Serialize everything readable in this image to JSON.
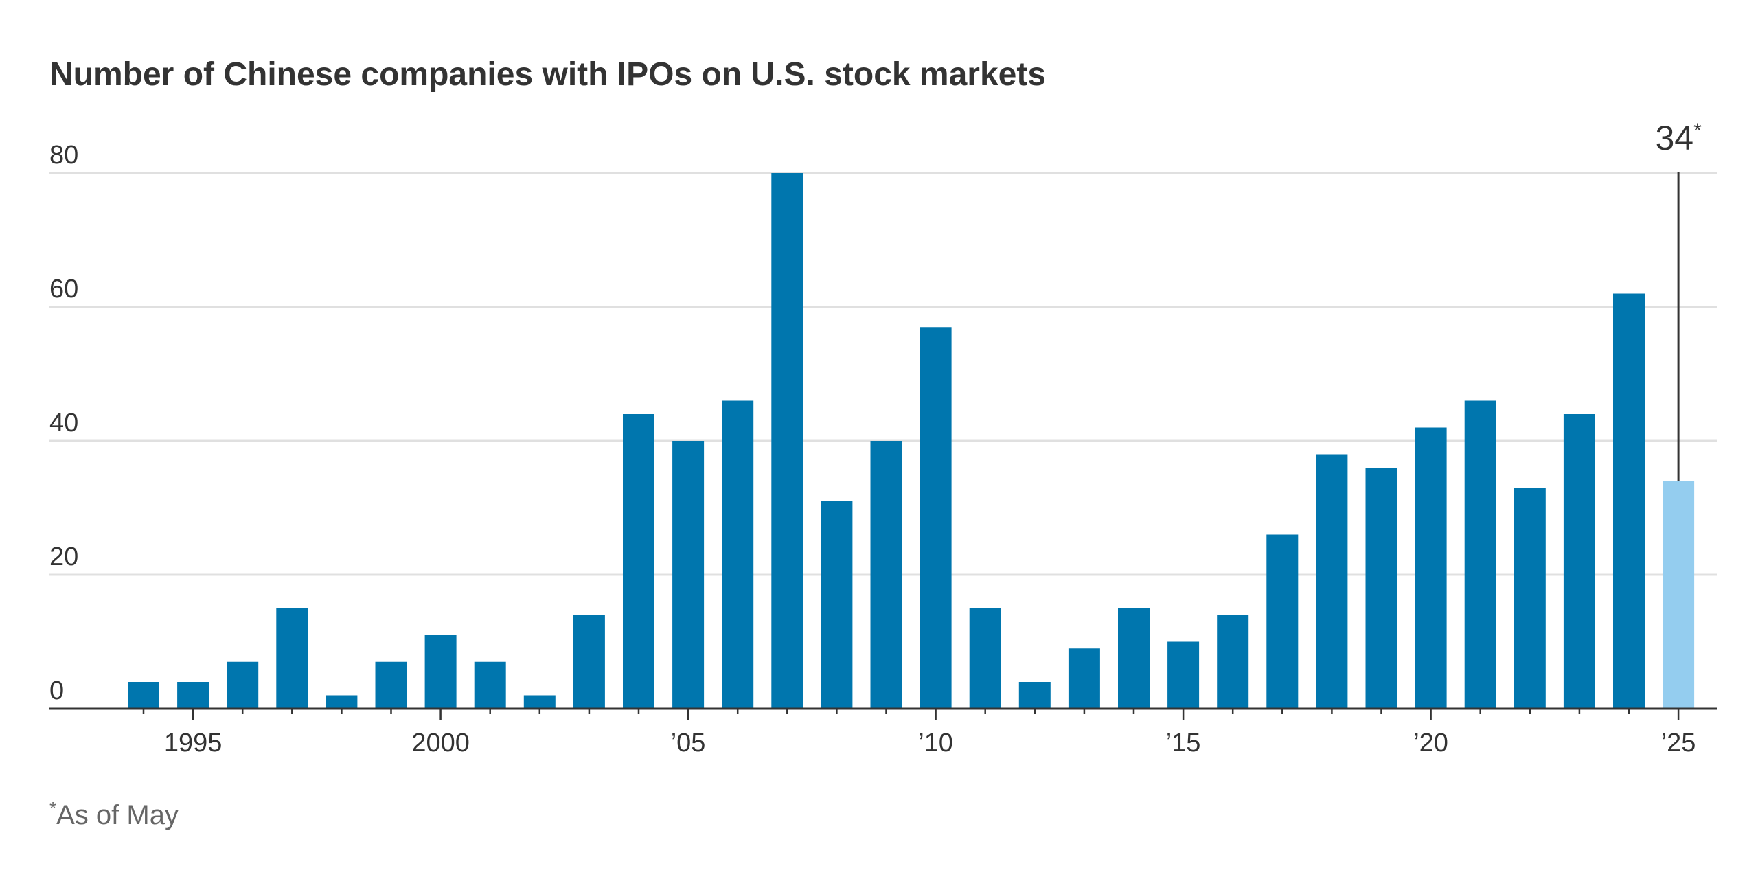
{
  "chart_data": {
    "type": "bar",
    "title": "Number of Chinese companies with IPOs on U.S. stock markets",
    "xlabel": "",
    "ylabel": "",
    "ylim": [
      0,
      80
    ],
    "yticks": [
      0,
      20,
      40,
      60,
      80
    ],
    "ytick_labels": [
      "0",
      "20",
      "40",
      "60",
      "80"
    ],
    "grid": true,
    "categories": [
      1994,
      1995,
      1996,
      1997,
      1998,
      1999,
      2000,
      2001,
      2002,
      2003,
      2004,
      2005,
      2006,
      2007,
      2008,
      2009,
      2010,
      2011,
      2012,
      2013,
      2014,
      2015,
      2016,
      2017,
      2018,
      2019,
      2020,
      2021,
      2022,
      2023,
      2024,
      2025
    ],
    "values": [
      4,
      4,
      7,
      15,
      2,
      7,
      11,
      7,
      2,
      14,
      44,
      40,
      46,
      80,
      31,
      40,
      57,
      15,
      4,
      9,
      15,
      10,
      14,
      26,
      38,
      36,
      42,
      46,
      33,
      44,
      62,
      34
    ],
    "xtick_years": [
      1995,
      2000,
      2005,
      2010,
      2015,
      2020,
      2025
    ],
    "xtick_labels": [
      "1995",
      "2000",
      "’05",
      "’10",
      "’15",
      "’20",
      "’25"
    ],
    "colors": {
      "bar": "#0076ae",
      "bar_partial": "#94cdef",
      "grid": "#e0e0e0",
      "axis": "#333333"
    },
    "partial_year": 2025,
    "callout": {
      "year": 2025,
      "value": 34,
      "label": "34",
      "marker": "*"
    },
    "footnote": {
      "marker": "*",
      "text": "As of May"
    }
  }
}
